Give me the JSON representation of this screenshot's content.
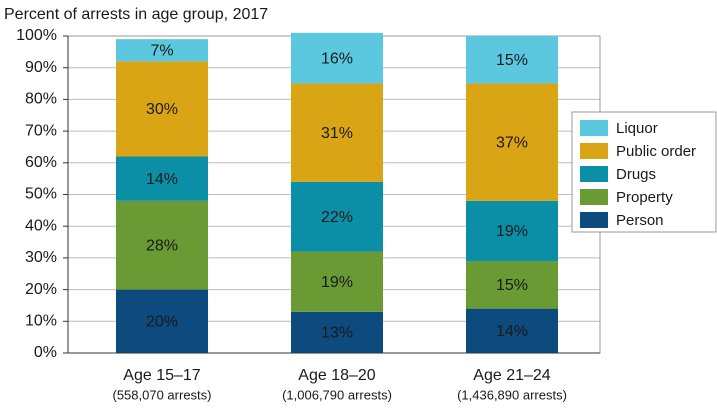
{
  "chart_data": {
    "type": "stacked_bar",
    "title": "Percent of arrests in age group, 2017",
    "categories": [
      "Age 15–17",
      "Age 18–20",
      "Age 21–24"
    ],
    "category_subtitles": [
      "(558,070 arrests)",
      "(1,006,790 arrests)",
      "(1,436,890 arrests)"
    ],
    "series": [
      {
        "name": "Person",
        "color": "#0d4a7d",
        "label_color": "#ffffff",
        "values": [
          20,
          13,
          14
        ],
        "value_labels": [
          "20%",
          "13%",
          "14%"
        ]
      },
      {
        "name": "Property",
        "color": "#6a9a34",
        "label_color": "#ffffff",
        "values": [
          28,
          19,
          15
        ],
        "value_labels": [
          "28%",
          "19%",
          "15%"
        ]
      },
      {
        "name": "Drugs",
        "color": "#0a8fa6",
        "label_color": "#ffffff",
        "values": [
          14,
          22,
          19
        ],
        "value_labels": [
          "14%",
          "22%",
          "19%"
        ]
      },
      {
        "name": "Public order",
        "color": "#d9a514",
        "label_color": "#1a1a1a",
        "values": [
          30,
          31,
          37
        ],
        "value_labels": [
          "30%",
          "31%",
          "37%"
        ]
      },
      {
        "name": "Liquor",
        "color": "#5bc8e0",
        "label_color": "#1a1a1a",
        "values": [
          7,
          16,
          15
        ],
        "value_labels": [
          "7%",
          "16%",
          "15%"
        ]
      }
    ],
    "ylim": [
      0,
      100
    ],
    "yticks": [
      {
        "value": 0,
        "label": "0%"
      },
      {
        "value": 10,
        "label": "10%"
      },
      {
        "value": 20,
        "label": "20%"
      },
      {
        "value": 30,
        "label": "30%"
      },
      {
        "value": 40,
        "label": "40%"
      },
      {
        "value": 50,
        "label": "50%"
      },
      {
        "value": 60,
        "label": "60%"
      },
      {
        "value": 70,
        "label": "70%"
      },
      {
        "value": 80,
        "label": "80%"
      },
      {
        "value": 90,
        "label": "90%"
      },
      {
        "value": 100,
        "label": "100%"
      }
    ],
    "grid": true,
    "legend": "right"
  }
}
